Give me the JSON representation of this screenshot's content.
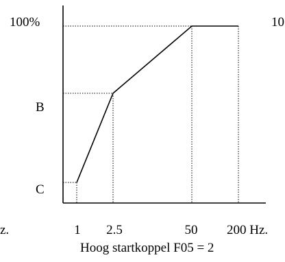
{
  "left_edge_label": "z.",
  "right_edge_label": "10",
  "y_labels": {
    "top": "100%",
    "b": "B",
    "c": "C"
  },
  "x_labels": {
    "t1": "1",
    "t2": "2.5",
    "t3": "50",
    "t4": "200 Hz."
  },
  "caption": "Hoog startkoppel  F05 = 2"
}
